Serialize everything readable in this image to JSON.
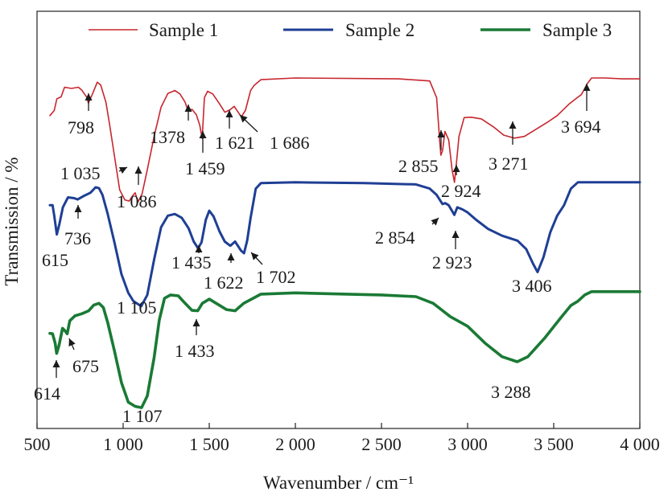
{
  "chart_data": {
    "type": "line",
    "xlabel": "Wavenumber / cm⁻¹",
    "ylabel": "Transmission / %",
    "xlim": [
      500,
      4000
    ],
    "ylim": [
      0,
      1
    ],
    "grid": false,
    "legend_placement": "top",
    "xticks": [
      500,
      1000,
      1500,
      2000,
      2500,
      3000,
      3500,
      4000
    ],
    "xtick_labels": [
      "500",
      "1 000",
      "1 500",
      "2 000",
      "2 500",
      "3 000",
      "3 500",
      "4 000"
    ],
    "series": [
      {
        "name": "Sample 1",
        "color": "#c8262e",
        "line_width": 1.6,
        "points": [
          [
            575,
            0.75
          ],
          [
            600,
            0.762
          ],
          [
            615,
            0.79
          ],
          [
            640,
            0.795
          ],
          [
            660,
            0.818
          ],
          [
            700,
            0.815
          ],
          [
            740,
            0.818
          ],
          [
            760,
            0.811
          ],
          [
            790,
            0.793
          ],
          [
            798,
            0.78
          ],
          [
            820,
            0.8
          ],
          [
            850,
            0.83
          ],
          [
            870,
            0.823
          ],
          [
            900,
            0.782
          ],
          [
            920,
            0.732
          ],
          [
            950,
            0.652
          ],
          [
            980,
            0.572
          ],
          [
            1010,
            0.548
          ],
          [
            1035,
            0.545
          ],
          [
            1055,
            0.558
          ],
          [
            1070,
            0.565
          ],
          [
            1086,
            0.543
          ],
          [
            1110,
            0.562
          ],
          [
            1140,
            0.62
          ],
          [
            1180,
            0.7
          ],
          [
            1220,
            0.77
          ],
          [
            1260,
            0.803
          ],
          [
            1300,
            0.81
          ],
          [
            1330,
            0.802
          ],
          [
            1360,
            0.782
          ],
          [
            1378,
            0.76
          ],
          [
            1400,
            0.765
          ],
          [
            1425,
            0.752
          ],
          [
            1445,
            0.727
          ],
          [
            1459,
            0.695
          ],
          [
            1472,
            0.793
          ],
          [
            1490,
            0.808
          ],
          [
            1520,
            0.802
          ],
          [
            1560,
            0.778
          ],
          [
            1590,
            0.758
          ],
          [
            1621,
            0.764
          ],
          [
            1645,
            0.772
          ],
          [
            1686,
            0.747
          ],
          [
            1710,
            0.762
          ],
          [
            1740,
            0.81
          ],
          [
            1760,
            0.822
          ],
          [
            1800,
            0.836
          ],
          [
            2000,
            0.84
          ],
          [
            2600,
            0.838
          ],
          [
            2780,
            0.833
          ],
          [
            2820,
            0.793
          ],
          [
            2838,
            0.69
          ],
          [
            2845,
            0.655
          ],
          [
            2855,
            0.667
          ],
          [
            2868,
            0.712
          ],
          [
            2890,
            0.692
          ],
          [
            2910,
            0.62
          ],
          [
            2924,
            0.59
          ],
          [
            2936,
            0.64
          ],
          [
            2950,
            0.7
          ],
          [
            2980,
            0.745
          ],
          [
            3020,
            0.746
          ],
          [
            3080,
            0.742
          ],
          [
            3150,
            0.723
          ],
          [
            3210,
            0.703
          ],
          [
            3271,
            0.696
          ],
          [
            3330,
            0.7
          ],
          [
            3400,
            0.718
          ],
          [
            3460,
            0.733
          ],
          [
            3520,
            0.75
          ],
          [
            3590,
            0.778
          ],
          [
            3640,
            0.794
          ],
          [
            3660,
            0.8
          ],
          [
            3675,
            0.811
          ],
          [
            3694,
            0.826
          ],
          [
            3720,
            0.84
          ],
          [
            3800,
            0.84
          ],
          [
            3900,
            0.838
          ],
          [
            4000,
            0.838
          ]
        ]
      },
      {
        "name": "Sample 2",
        "color": "#1f3f94",
        "line_width": 3,
        "points": [
          [
            575,
            0.535
          ],
          [
            590,
            0.535
          ],
          [
            600,
            0.51
          ],
          [
            615,
            0.465
          ],
          [
            630,
            0.49
          ],
          [
            650,
            0.53
          ],
          [
            680,
            0.554
          ],
          [
            715,
            0.552
          ],
          [
            736,
            0.549
          ],
          [
            770,
            0.557
          ],
          [
            810,
            0.565
          ],
          [
            840,
            0.578
          ],
          [
            860,
            0.576
          ],
          [
            880,
            0.56
          ],
          [
            910,
            0.515
          ],
          [
            950,
            0.445
          ],
          [
            990,
            0.37
          ],
          [
            1030,
            0.325
          ],
          [
            1060,
            0.305
          ],
          [
            1105,
            0.293
          ],
          [
            1140,
            0.32
          ],
          [
            1180,
            0.405
          ],
          [
            1220,
            0.482
          ],
          [
            1260,
            0.51
          ],
          [
            1300,
            0.514
          ],
          [
            1340,
            0.505
          ],
          [
            1380,
            0.48
          ],
          [
            1410,
            0.448
          ],
          [
            1435,
            0.432
          ],
          [
            1455,
            0.446
          ],
          [
            1480,
            0.5
          ],
          [
            1500,
            0.522
          ],
          [
            1525,
            0.508
          ],
          [
            1560,
            0.472
          ],
          [
            1590,
            0.448
          ],
          [
            1622,
            0.438
          ],
          [
            1650,
            0.448
          ],
          [
            1685,
            0.426
          ],
          [
            1702,
            0.42
          ],
          [
            1720,
            0.45
          ],
          [
            1740,
            0.505
          ],
          [
            1770,
            0.575
          ],
          [
            1800,
            0.588
          ],
          [
            2000,
            0.59
          ],
          [
            2400,
            0.588
          ],
          [
            2700,
            0.585
          ],
          [
            2780,
            0.575
          ],
          [
            2820,
            0.56
          ],
          [
            2854,
            0.538
          ],
          [
            2870,
            0.54
          ],
          [
            2890,
            0.535
          ],
          [
            2923,
            0.512
          ],
          [
            2940,
            0.53
          ],
          [
            2970,
            0.525
          ],
          [
            3000,
            0.518
          ],
          [
            3050,
            0.5
          ],
          [
            3120,
            0.478
          ],
          [
            3200,
            0.462
          ],
          [
            3290,
            0.45
          ],
          [
            3340,
            0.43
          ],
          [
            3380,
            0.395
          ],
          [
            3406,
            0.375
          ],
          [
            3440,
            0.41
          ],
          [
            3480,
            0.47
          ],
          [
            3520,
            0.51
          ],
          [
            3560,
            0.535
          ],
          [
            3600,
            0.575
          ],
          [
            3640,
            0.59
          ],
          [
            3700,
            0.59
          ],
          [
            4000,
            0.59
          ]
        ]
      },
      {
        "name": "Sample 3",
        "color": "#1a7a35",
        "line_width": 3.6,
        "points": [
          [
            575,
            0.228
          ],
          [
            590,
            0.227
          ],
          [
            605,
            0.205
          ],
          [
            614,
            0.18
          ],
          [
            628,
            0.2
          ],
          [
            648,
            0.24
          ],
          [
            665,
            0.233
          ],
          [
            675,
            0.227
          ],
          [
            690,
            0.258
          ],
          [
            720,
            0.27
          ],
          [
            760,
            0.275
          ],
          [
            800,
            0.282
          ],
          [
            830,
            0.296
          ],
          [
            860,
            0.3
          ],
          [
            885,
            0.29
          ],
          [
            910,
            0.255
          ],
          [
            950,
            0.185
          ],
          [
            990,
            0.11
          ],
          [
            1030,
            0.063
          ],
          [
            1070,
            0.053
          ],
          [
            1107,
            0.05
          ],
          [
            1140,
            0.078
          ],
          [
            1180,
            0.17
          ],
          [
            1210,
            0.26
          ],
          [
            1240,
            0.312
          ],
          [
            1275,
            0.32
          ],
          [
            1320,
            0.318
          ],
          [
            1360,
            0.3
          ],
          [
            1400,
            0.283
          ],
          [
            1433,
            0.282
          ],
          [
            1460,
            0.3
          ],
          [
            1500,
            0.31
          ],
          [
            1540,
            0.3
          ],
          [
            1600,
            0.285
          ],
          [
            1650,
            0.282
          ],
          [
            1700,
            0.3
          ],
          [
            1800,
            0.322
          ],
          [
            2000,
            0.325
          ],
          [
            2300,
            0.322
          ],
          [
            2500,
            0.32
          ],
          [
            2700,
            0.316
          ],
          [
            2800,
            0.3
          ],
          [
            2900,
            0.268
          ],
          [
            3000,
            0.245
          ],
          [
            3100,
            0.205
          ],
          [
            3200,
            0.172
          ],
          [
            3288,
            0.16
          ],
          [
            3350,
            0.172
          ],
          [
            3450,
            0.218
          ],
          [
            3540,
            0.265
          ],
          [
            3600,
            0.295
          ],
          [
            3640,
            0.305
          ],
          [
            3680,
            0.32
          ],
          [
            3720,
            0.328
          ],
          [
            4000,
            0.328
          ]
        ]
      }
    ],
    "annotations": [
      {
        "text": "798",
        "series": 0,
        "x": 798
      },
      {
        "text": "1378",
        "series": 0,
        "x": 1378
      },
      {
        "text": "1 459",
        "series": 0,
        "x": 1459
      },
      {
        "text": "1 621",
        "series": 0,
        "x": 1621
      },
      {
        "text": "1 686",
        "series": 0,
        "x": 1686
      },
      {
        "text": "1 035",
        "series": 0,
        "x": 1035
      },
      {
        "text": "1 086",
        "series": 0,
        "x": 1086
      },
      {
        "text": "2 855",
        "series": 0,
        "x": 2855
      },
      {
        "text": "2 924",
        "series": 0,
        "x": 2924
      },
      {
        "text": "3 271",
        "series": 0,
        "x": 3271
      },
      {
        "text": "3 694",
        "series": 0,
        "x": 3694
      },
      {
        "text": "615",
        "series": 1,
        "x": 615
      },
      {
        "text": "736",
        "series": 1,
        "x": 736
      },
      {
        "text": "1 105",
        "series": 1,
        "x": 1105
      },
      {
        "text": "1 435",
        "series": 1,
        "x": 1435
      },
      {
        "text": "1 622",
        "series": 1,
        "x": 1622
      },
      {
        "text": "1 702",
        "series": 1,
        "x": 1702
      },
      {
        "text": "2 854",
        "series": 1,
        "x": 2854
      },
      {
        "text": "2 923",
        "series": 1,
        "x": 2923
      },
      {
        "text": "3 406",
        "series": 1,
        "x": 3406
      },
      {
        "text": "614",
        "series": 2,
        "x": 614
      },
      {
        "text": "675",
        "series": 2,
        "x": 675
      },
      {
        "text": "1 107",
        "series": 2,
        "x": 1107
      },
      {
        "text": "1 433",
        "series": 2,
        "x": 1433
      },
      {
        "text": "3 288",
        "series": 2,
        "x": 3288
      }
    ]
  }
}
